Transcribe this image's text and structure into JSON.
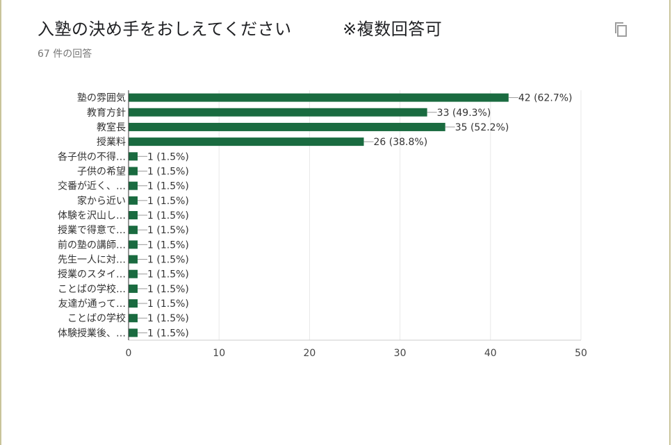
{
  "header": {
    "title": "入塾の決め手をおしえてください　　　※複数回答可",
    "response_count": "67 件の回答",
    "copy_icon": "copy-icon"
  },
  "colors": {
    "bar": "#1a6b40",
    "grid": "#e8e8e8",
    "axis": "#333333"
  },
  "chart_data": {
    "type": "bar",
    "orientation": "horizontal",
    "categories": [
      "塾の雰囲気",
      "教育方針",
      "教室長",
      "授業料",
      "各子供の不得…",
      "子供の希望",
      "交番が近く、…",
      "家から近い",
      "体験を沢山し…",
      "授業で得意で…",
      "前の塾の講師…",
      "先生一人に対…",
      "授業のスタイ…",
      "ことばの学校…",
      "友達が通って…",
      "ことばの学校",
      "体験授業後、…"
    ],
    "values": [
      42,
      33,
      35,
      26,
      1,
      1,
      1,
      1,
      1,
      1,
      1,
      1,
      1,
      1,
      1,
      1,
      1
    ],
    "data_labels": [
      "42 (62.7%)",
      "33 (49.3%)",
      "35 (52.2%)",
      "26 (38.8%)",
      "1 (1.5%)",
      "1 (1.5%)",
      "1 (1.5%)",
      "1 (1.5%)",
      "1 (1.5%)",
      "1 (1.5%)",
      "1 (1.5%)",
      "1 (1.5%)",
      "1 (1.5%)",
      "1 (1.5%)",
      "1 (1.5%)",
      "1 (1.5%)",
      "1 (1.5%)"
    ],
    "xlim": [
      0,
      50
    ],
    "xticks": [
      0,
      10,
      20,
      30,
      40,
      50
    ],
    "xtick_labels": [
      "0",
      "10",
      "20",
      "30",
      "40",
      "50"
    ],
    "grid": true,
    "legend": "none",
    "title": "",
    "xlabel": "",
    "ylabel": ""
  }
}
